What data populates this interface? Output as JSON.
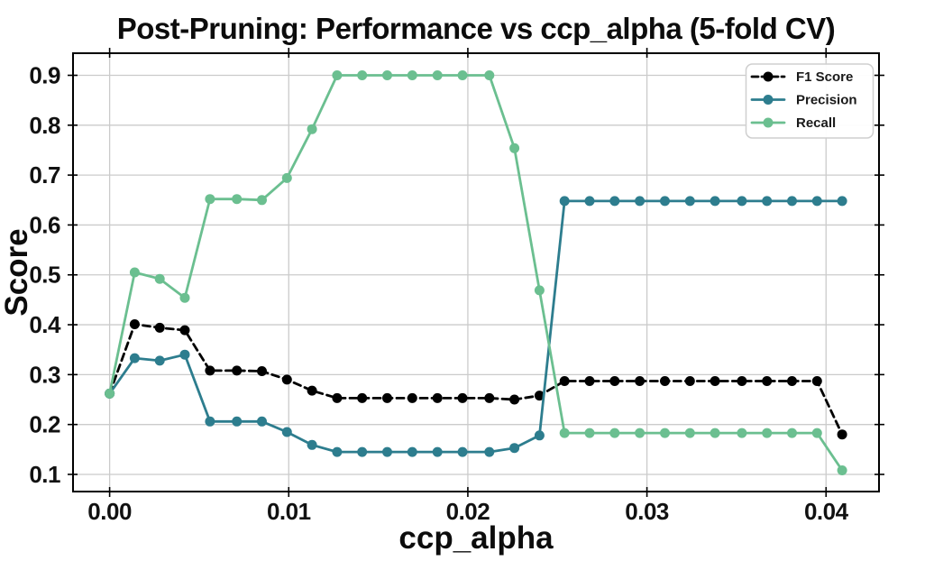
{
  "chart_data": {
    "type": "line",
    "title": "Post-Pruning: Performance vs ccp_alpha (5-fold CV)",
    "xlabel": "ccp_alpha",
    "ylabel": "Score",
    "grid": true,
    "legend_position": "upper right",
    "xlim": [
      -0.002044,
      0.042957
    ],
    "ylim": [
      0.0656,
      0.9443
    ],
    "x_ticks": [
      {
        "value": 0.0,
        "label": "0.00"
      },
      {
        "value": 0.01,
        "label": "0.01"
      },
      {
        "value": 0.02,
        "label": "0.02"
      },
      {
        "value": 0.03,
        "label": "0.03"
      },
      {
        "value": 0.04,
        "label": "0.04"
      }
    ],
    "y_ticks": [
      {
        "value": 0.1,
        "label": "0.1"
      },
      {
        "value": 0.2,
        "label": "0.2"
      },
      {
        "value": 0.3,
        "label": "0.3"
      },
      {
        "value": 0.4,
        "label": "0.4"
      },
      {
        "value": 0.5,
        "label": "0.5"
      },
      {
        "value": 0.6,
        "label": "0.6"
      },
      {
        "value": 0.7,
        "label": "0.7"
      },
      {
        "value": 0.8,
        "label": "0.8"
      },
      {
        "value": 0.9,
        "label": "0.9"
      }
    ],
    "x": [
      0.0,
      0.0014,
      0.0028,
      0.0042,
      0.0056,
      0.0071,
      0.0085,
      0.0099,
      0.0113,
      0.0127,
      0.0141,
      0.0155,
      0.0169,
      0.0183,
      0.0197,
      0.0212,
      0.0226,
      0.024,
      0.0254,
      0.0268,
      0.0282,
      0.0296,
      0.031,
      0.0324,
      0.0338,
      0.0353,
      0.0367,
      0.0381,
      0.0395,
      0.0409
    ],
    "series": [
      {
        "name": "F1 Score",
        "color": "#000000",
        "dash": "8 5",
        "marker": "circle",
        "values": [
          0.262,
          0.401,
          0.394,
          0.389,
          0.308,
          0.308,
          0.307,
          0.29,
          0.268,
          0.253,
          0.253,
          0.253,
          0.253,
          0.253,
          0.253,
          0.253,
          0.25,
          0.258,
          0.287,
          0.287,
          0.287,
          0.287,
          0.287,
          0.287,
          0.287,
          0.287,
          0.287,
          0.287,
          0.287,
          0.18
        ]
      },
      {
        "name": "Precision",
        "color": "#2d7d8e",
        "dash": null,
        "marker": "circle",
        "values": [
          0.262,
          0.333,
          0.328,
          0.34,
          0.206,
          0.206,
          0.206,
          0.185,
          0.159,
          0.145,
          0.145,
          0.145,
          0.145,
          0.145,
          0.145,
          0.145,
          0.153,
          0.178,
          0.648,
          0.648,
          0.648,
          0.648,
          0.648,
          0.648,
          0.648,
          0.648,
          0.648,
          0.648,
          0.648,
          0.648
        ]
      },
      {
        "name": "Recall",
        "color": "#6bbf90",
        "dash": null,
        "marker": "circle",
        "values": [
          0.262,
          0.505,
          0.492,
          0.454,
          0.652,
          0.652,
          0.65,
          0.694,
          0.792,
          0.9,
          0.9,
          0.9,
          0.9,
          0.9,
          0.9,
          0.9,
          0.754,
          0.469,
          0.183,
          0.183,
          0.183,
          0.183,
          0.183,
          0.183,
          0.183,
          0.183,
          0.183,
          0.183,
          0.183,
          0.108
        ]
      }
    ]
  }
}
